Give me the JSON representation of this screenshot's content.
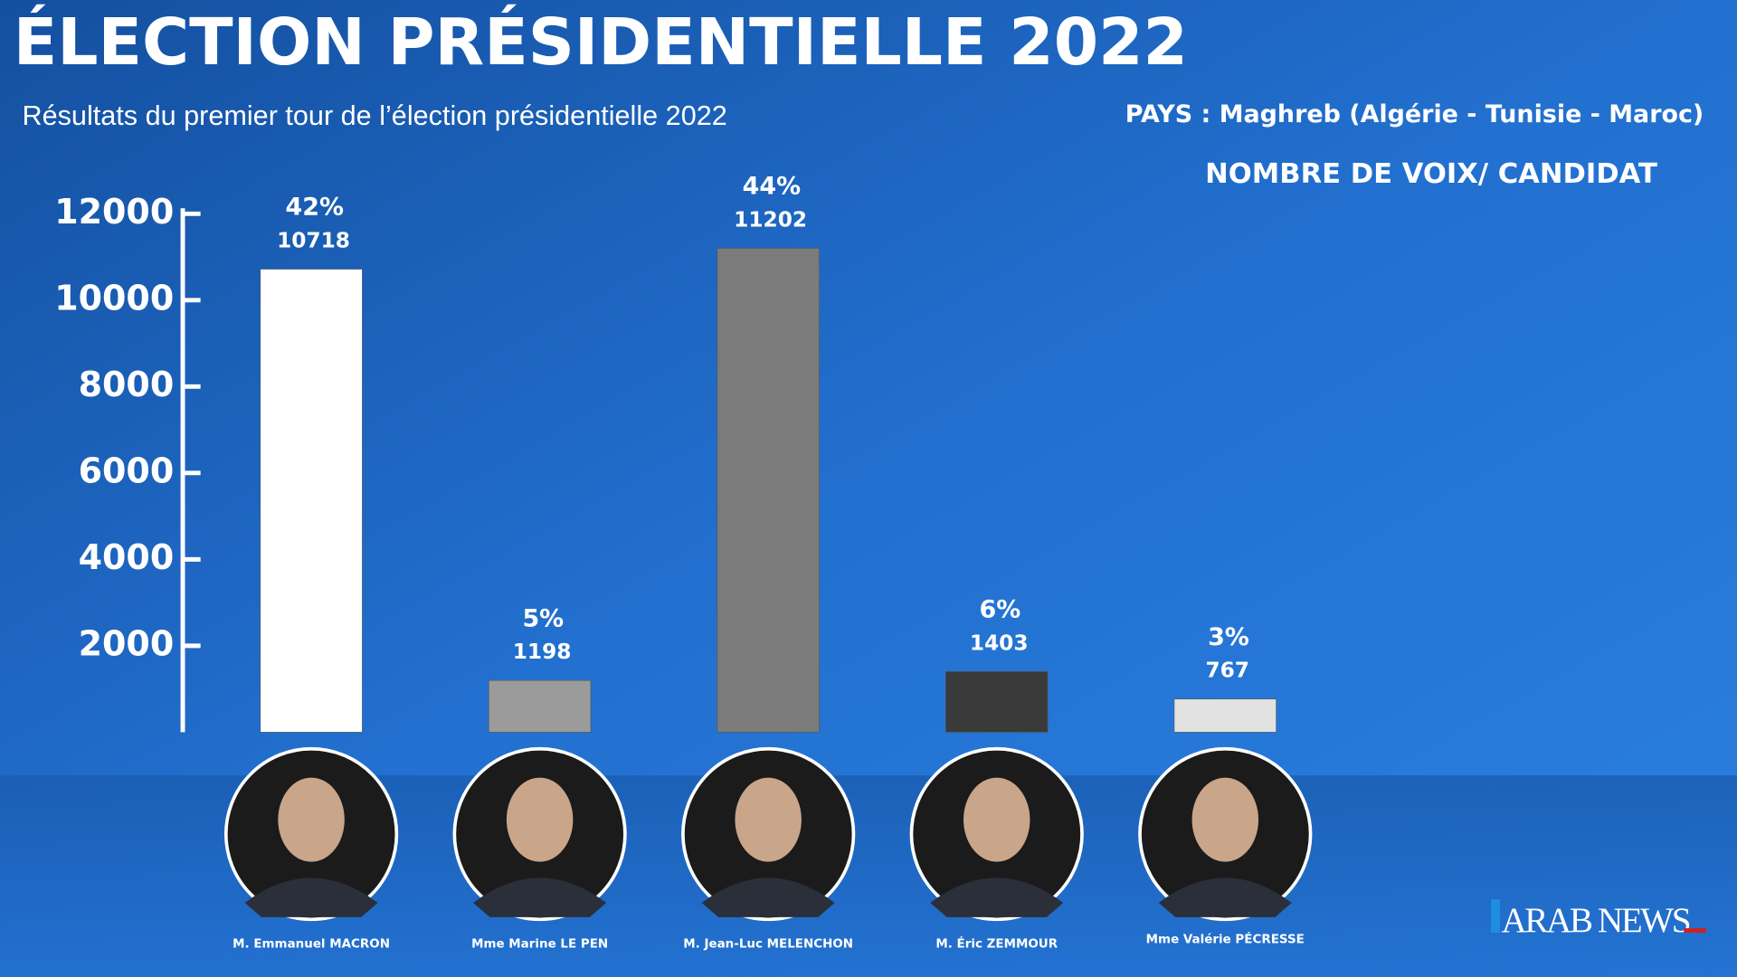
{
  "chart_data": {
    "type": "bar",
    "title": "ÉLECTION PRÉSIDENTIELLE 2022",
    "subtitle": "Résultats du premier tour  de l’élection présidentielle 2022",
    "country": "PAYS : Maghreb (Algérie - Tunisie - Maroc)",
    "chart_caption": "NOMBRE DE VOIX/ CANDIDAT",
    "categories": [
      "M. Emmanuel MACRON",
      "Mme Marine LE PEN",
      "M. Jean-Luc MELENCHON",
      "M. Éric ZEMMOUR",
      "Mme Valérie PÉCRESSE"
    ],
    "values": [
      10718,
      1198,
      11202,
      1403,
      767
    ],
    "share_labels": [
      "42%",
      "5%",
      "44%",
      "6%",
      "3%"
    ],
    "colors": [
      "#ffffff",
      "#9b9b9b",
      "#7b7b7b",
      "#3a3a3a",
      "#e2e2e2"
    ],
    "ylim": [
      0,
      12000
    ],
    "yticks": [
      2000,
      4000,
      6000,
      8000,
      10000,
      12000
    ],
    "logo": "ARAB NEWS"
  }
}
